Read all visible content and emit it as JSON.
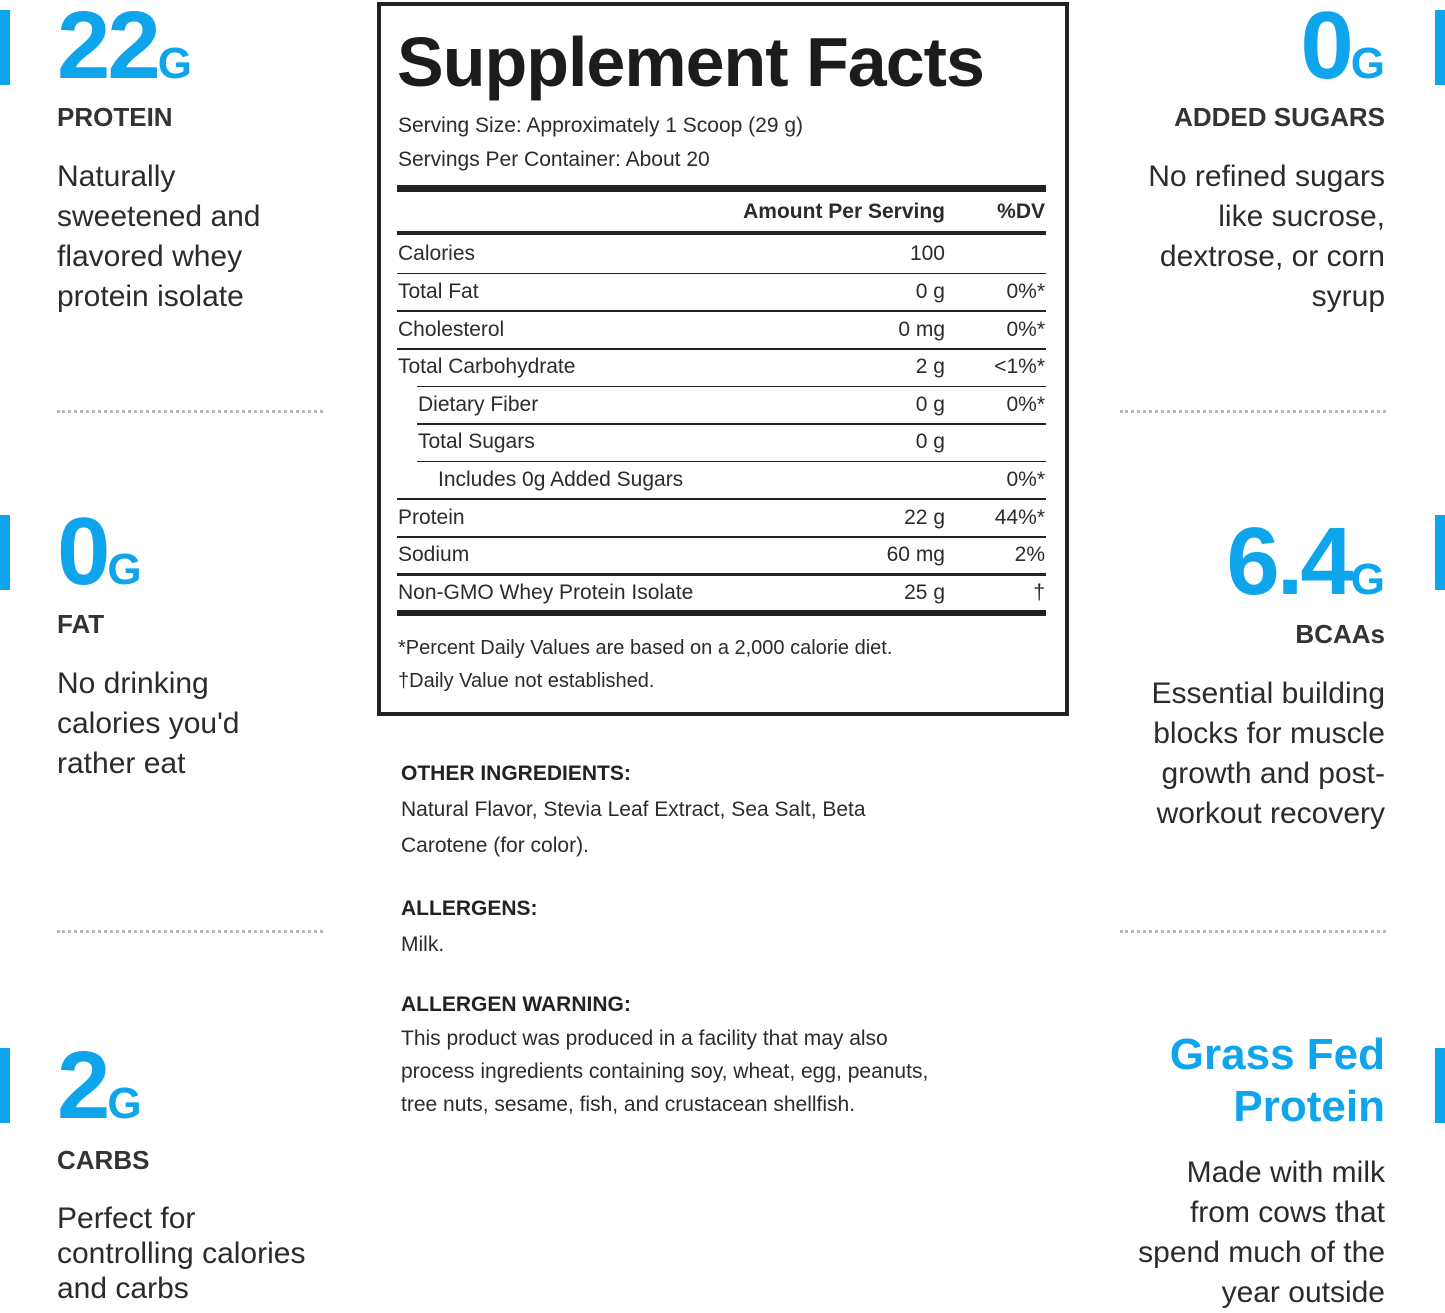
{
  "left_features": [
    {
      "value": "22",
      "unit": "G",
      "label": "PROTEIN",
      "description": [
        "Naturally",
        "sweetened and",
        "flavored whey",
        "protein isolate"
      ]
    },
    {
      "value": "0",
      "unit": "G",
      "label": "FAT",
      "description": [
        "No drinking",
        "calories you'd",
        "rather eat"
      ]
    },
    {
      "value": "2",
      "unit": "G",
      "label": "CARBS",
      "description": [
        "Perfect for",
        "controlling calories",
        "and carbs"
      ]
    }
  ],
  "right_features": [
    {
      "value": "0",
      "unit": "G",
      "label": "ADDED SUGARS",
      "description": [
        "No refined sugars",
        "like sucrose,",
        "dextrose, or corn",
        "syrup"
      ]
    },
    {
      "value": "6.4",
      "unit": "G",
      "label": "BCAAs",
      "description": [
        "Essential building",
        "blocks for muscle",
        "growth and post-",
        "workout recovery"
      ]
    },
    {
      "title": [
        "Grass Fed",
        "Protein"
      ],
      "description": [
        "Made with milk",
        "from cows that",
        "spend much of the",
        "year outside"
      ]
    }
  ],
  "facts": {
    "title": "Supplement Facts",
    "serving_size": "Serving Size: Approximately 1 Scoop (29 g)",
    "servings": "Servings Per Container: About 20",
    "header": {
      "amount": "Amount Per Serving",
      "dv": "%DV"
    },
    "rows": [
      {
        "name": "Calories",
        "amount": "100"
      },
      {
        "name": "Total Fat",
        "amount": "0 g",
        "dv": "0%*"
      },
      {
        "name": "Cholesterol",
        "amount": "0 mg",
        "dv": "0%*"
      },
      {
        "name": "Total Carbohydrate",
        "amount": "2 g",
        "dv": "<1%*"
      },
      {
        "name": "Dietary Fiber",
        "amount": "0 g",
        "dv": "0%*"
      },
      {
        "name": "Total Sugars",
        "amount": "0 g"
      },
      {
        "name": "Includes 0g Added Sugars",
        "dv": "0%*"
      },
      {
        "name": "Protein",
        "amount": "22 g",
        "dv": "44%*"
      },
      {
        "name": "Sodium",
        "amount": "60 mg",
        "dv": "2%"
      },
      {
        "name": "Non-GMO Whey Protein Isolate",
        "amount": "25 g",
        "dv": "†"
      }
    ],
    "footnotes": [
      "*Percent Daily Values are based on a 2,000 calorie diet.",
      "†Daily Value not established."
    ]
  },
  "ingredients": [
    {
      "heading": "OTHER INGREDIENTS:",
      "lines": [
        "Natural Flavor, Stevia Leaf Extract, Sea Salt, Beta",
        "Carotene (for color)."
      ]
    },
    {
      "heading": "ALLERGENS:",
      "lines": [
        "Milk."
      ]
    },
    {
      "heading": "ALLERGEN WARNING:",
      "lines": [
        "This product was produced in a facility that may also",
        "process ingredients containing soy, wheat, egg, peanuts,",
        "tree nuts, sesame, fish, and crustacean shellfish."
      ]
    }
  ]
}
